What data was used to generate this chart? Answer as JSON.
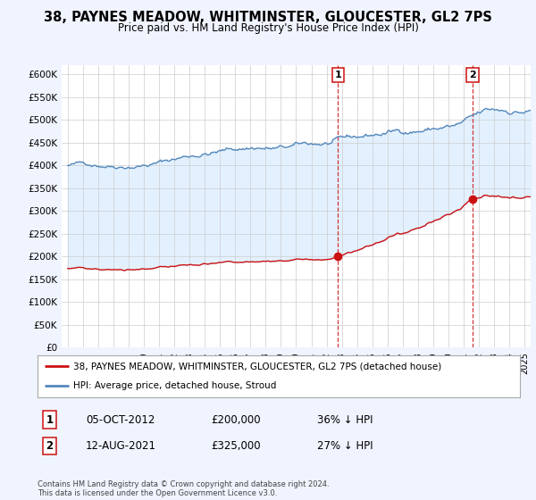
{
  "title": "38, PAYNES MEADOW, WHITMINSTER, GLOUCESTER, GL2 7PS",
  "subtitle": "Price paid vs. HM Land Registry's House Price Index (HPI)",
  "hpi_color": "#5588bb",
  "price_color": "#cc1111",
  "fill_color": "#ddeeff",
  "background_color": "#f0f4ff",
  "plot_bg_color": "#ffffff",
  "dashed_line_color": "#cc1111",
  "ylim": [
    0,
    620000
  ],
  "yticks": [
    0,
    50000,
    100000,
    150000,
    200000,
    250000,
    300000,
    350000,
    400000,
    450000,
    500000,
    550000,
    600000
  ],
  "ytick_labels": [
    "£0",
    "£50K",
    "£100K",
    "£150K",
    "£200K",
    "£250K",
    "£300K",
    "£350K",
    "£400K",
    "£450K",
    "£500K",
    "£550K",
    "£600K"
  ],
  "t1_year_float": 2012.75,
  "t2_year_float": 2021.58,
  "price_t1": 200000,
  "price_t2": 325000,
  "legend_line1": "38, PAYNES MEADOW, WHITMINSTER, GLOUCESTER, GL2 7PS (detached house)",
  "legend_line2": "HPI: Average price, detached house, Stroud",
  "footnote": "Contains HM Land Registry data © Crown copyright and database right 2024.\nThis data is licensed under the Open Government Licence v3.0.",
  "table_row1": [
    "1",
    "05-OCT-2012",
    "£200,000",
    "36% ↓ HPI"
  ],
  "table_row2": [
    "2",
    "12-AUG-2021",
    "£325,000",
    "27% ↓ HPI"
  ]
}
